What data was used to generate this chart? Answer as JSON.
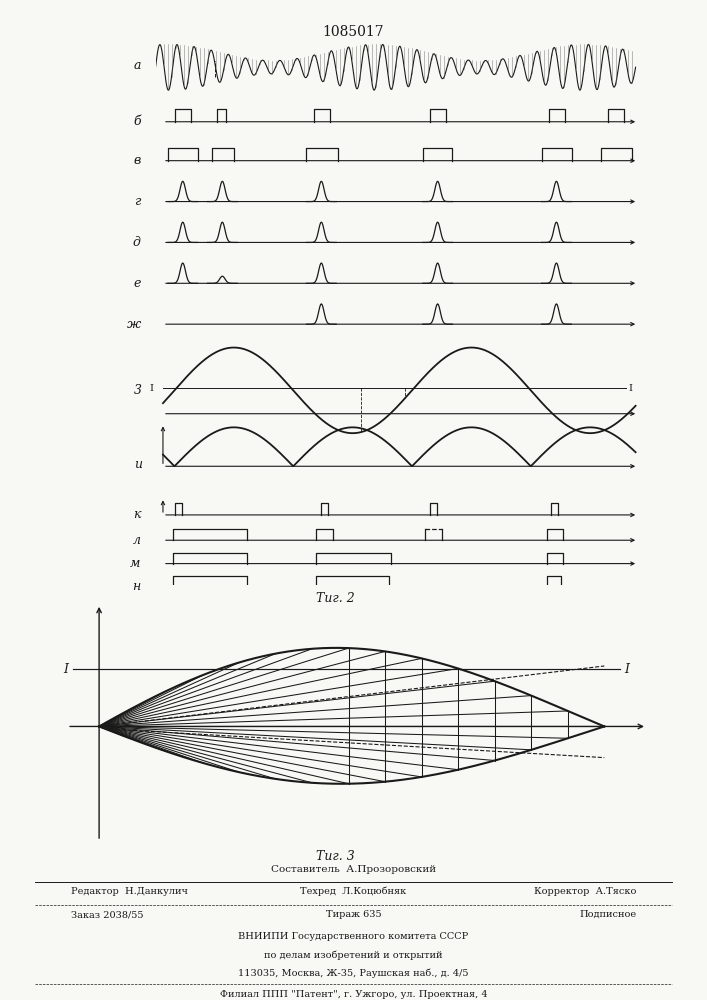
{
  "title_number": "1085017",
  "fig2_label": "Τиг. 2",
  "fig3_label": "Τиг. 3",
  "footer_line1": "Составитель  А.Прозоровский",
  "footer_line2_left": "Редактор  Н.Данкулич",
  "footer_line2_mid": "Техред  Л.Коцюбняк",
  "footer_line2_right": "Корректор  А.Тяско",
  "footer_line3_left": "Заказ 2038/55",
  "footer_line3_mid": "Тираж 635",
  "footer_line3_right": "Подписное",
  "footer_line4": "ВНИИПИ Государственного комитета СССР",
  "footer_line5": "по делам изобретений и открытий",
  "footer_line6": "113035, Москва, Ж-35, Раушская наб., д. 4/5",
  "footer_line7": "Филиал ППП \"Патент\", г. Ужгоро, ул. Проектная, 4",
  "bg_color": "#f8f8f4",
  "line_color": "#1a1a1a"
}
